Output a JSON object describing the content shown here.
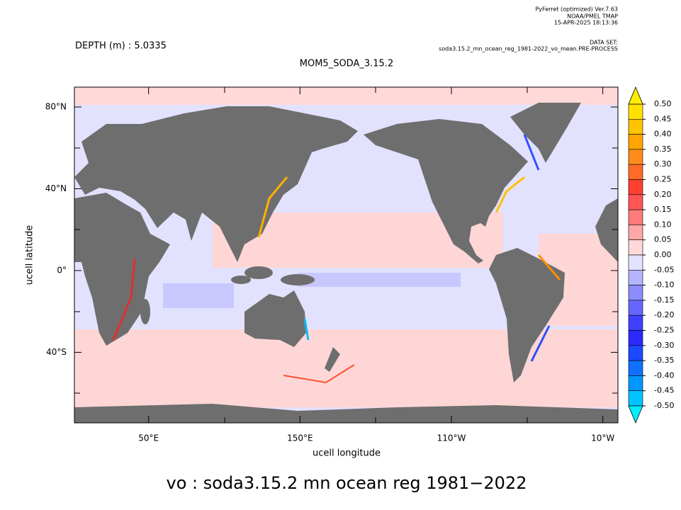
{
  "header": {
    "software": "PyFerret (optimized) Ver.7.63",
    "org": "NOAA/PMEL TMAP",
    "timestamp": "15-APR-2025 18:13:36",
    "dataset_label": "DATA SET:",
    "dataset": "soda3.15.2_mn_ocean_reg_1981-2022_vo_mean.PRE-PROCESS"
  },
  "map": {
    "depth_label": "DEPTH (m) : 5.0335",
    "title": "MOM5_SODA_3.15.2",
    "x_label": "ucell longitude",
    "y_label": "ucell latitude",
    "lon_range": [
      1,
      360
    ],
    "lat_range": [
      -74.5,
      89.7
    ],
    "lon_ticks": [
      {
        "value": 50,
        "label": "50°E"
      },
      {
        "value": 150,
        "label": "150°E"
      },
      {
        "value": 250,
        "label": "110°W"
      },
      {
        "value": 350,
        "label": "10°W"
      }
    ],
    "lat_ticks": [
      {
        "value": 80,
        "label": "80°N"
      },
      {
        "value": 40,
        "label": "40°N"
      },
      {
        "value": 0,
        "label": "0°"
      },
      {
        "value": -40,
        "label": "40°S"
      }
    ]
  },
  "colorbar": {
    "levels": [
      {
        "value": 0.5,
        "label": "0.50"
      },
      {
        "value": 0.45,
        "label": "0.45"
      },
      {
        "value": 0.4,
        "label": "0.40"
      },
      {
        "value": 0.35,
        "label": "0.35"
      },
      {
        "value": 0.3,
        "label": "0.30"
      },
      {
        "value": 0.25,
        "label": "0.25"
      },
      {
        "value": 0.2,
        "label": "0.20"
      },
      {
        "value": 0.15,
        "label": "0.15"
      },
      {
        "value": 0.1,
        "label": "0.10"
      },
      {
        "value": 0.05,
        "label": "0.05"
      },
      {
        "value": 0,
        "label": "0.00"
      },
      {
        "value": -0.05,
        "label": "-0.05"
      },
      {
        "value": -0.1,
        "label": "-0.10"
      },
      {
        "value": -0.15,
        "label": "-0.15"
      },
      {
        "value": -0.2,
        "label": "-0.20"
      },
      {
        "value": -0.25,
        "label": "-0.25"
      },
      {
        "value": -0.3,
        "label": "-0.30"
      },
      {
        "value": -0.35,
        "label": "-0.35"
      },
      {
        "value": -0.4,
        "label": "-0.40"
      },
      {
        "value": -0.45,
        "label": "-0.45"
      },
      {
        "value": -0.5,
        "label": "-0.50"
      }
    ],
    "colors": [
      "#ffe000",
      "#ffc400",
      "#ffa500",
      "#ff8c1a",
      "#ff6a28",
      "#ff4030",
      "#ff5555",
      "#ff7a7a",
      "#ffa6a6",
      "#ffd8d8",
      "#e2e2ff",
      "#b4b4ff",
      "#8c8cff",
      "#6666ff",
      "#4040ff",
      "#2a2aff",
      "#1c48ff",
      "#1070ff",
      "#0098ff",
      "#00c4ff"
    ],
    "over_color": "#ffee00",
    "under_color": "#00eeff"
  },
  "caption": "vo : soda3.15.2 mn ocean reg 1981−2022"
}
